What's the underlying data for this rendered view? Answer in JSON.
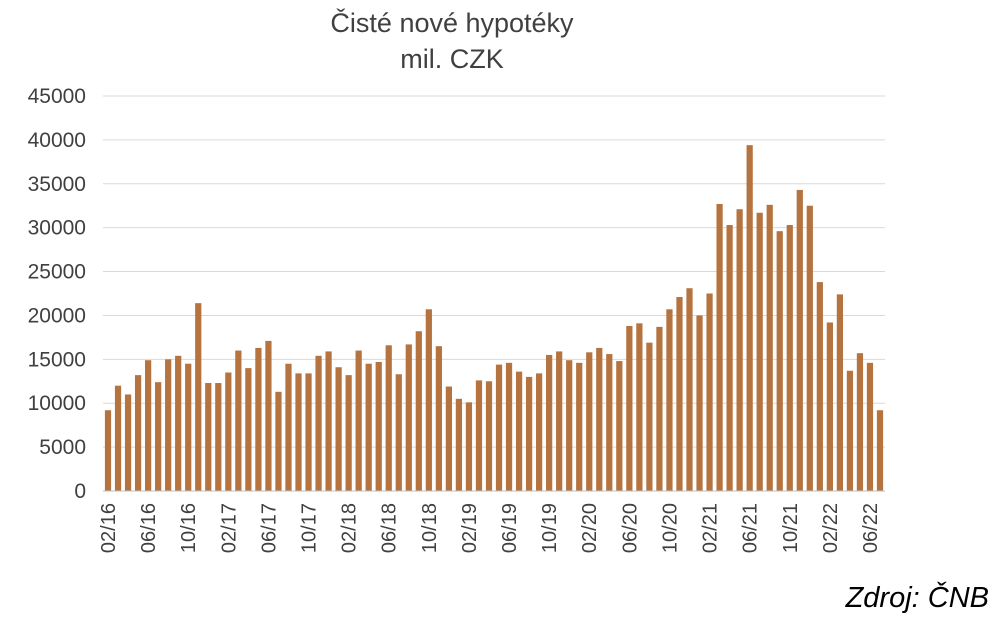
{
  "chart_data": {
    "type": "bar",
    "title": "Čisté nové hypotéky",
    "subtitle": "mil. CZK",
    "source": "Zdroj: ČNB",
    "ylim": [
      0,
      45000
    ],
    "yticks": [
      0,
      5000,
      10000,
      15000,
      20000,
      25000,
      30000,
      35000,
      40000,
      45000
    ],
    "grid": true,
    "bar_color": "#B5733F",
    "categories": [
      "02/16",
      "03/16",
      "04/16",
      "05/16",
      "06/16",
      "07/16",
      "08/16",
      "09/16",
      "10/16",
      "11/16",
      "12/16",
      "01/17",
      "02/17",
      "03/17",
      "04/17",
      "05/17",
      "06/17",
      "07/17",
      "08/17",
      "09/17",
      "10/17",
      "11/17",
      "12/17",
      "01/18",
      "02/18",
      "03/18",
      "04/18",
      "05/18",
      "06/18",
      "07/18",
      "08/18",
      "09/18",
      "10/18",
      "11/18",
      "12/18",
      "01/19",
      "02/19",
      "03/19",
      "04/19",
      "05/19",
      "06/19",
      "07/19",
      "08/19",
      "09/19",
      "10/19",
      "11/19",
      "12/19",
      "01/20",
      "02/20",
      "03/20",
      "04/20",
      "05/20",
      "06/20",
      "07/20",
      "08/20",
      "09/20",
      "10/20",
      "11/20",
      "12/20",
      "01/21",
      "02/21",
      "03/21",
      "04/21",
      "05/21",
      "06/21",
      "07/21",
      "08/21",
      "09/21",
      "10/21",
      "11/21",
      "12/21",
      "01/22",
      "02/22",
      "03/22",
      "04/22",
      "05/22",
      "06/22",
      "07/22"
    ],
    "tick_labels": [
      "02/16",
      "06/16",
      "10/16",
      "02/17",
      "06/17",
      "10/17",
      "02/18",
      "06/18",
      "10/18",
      "02/19",
      "06/19",
      "10/19",
      "02/20",
      "06/20",
      "10/20",
      "02/21",
      "06/21",
      "10/21",
      "02/22",
      "06/22"
    ],
    "values": [
      9200,
      12000,
      11000,
      13200,
      14900,
      12400,
      15000,
      15400,
      14500,
      21400,
      12300,
      12300,
      13500,
      16000,
      14000,
      16300,
      17100,
      11300,
      14500,
      13400,
      13400,
      15400,
      15900,
      14100,
      13200,
      16000,
      14500,
      14700,
      16600,
      13300,
      16700,
      18200,
      20700,
      16500,
      11900,
      10500,
      10100,
      12600,
      12500,
      14400,
      14600,
      13600,
      13000,
      13400,
      15500,
      15900,
      14900,
      14600,
      15800,
      16300,
      15600,
      14800,
      18800,
      19100,
      16900,
      18700,
      20700,
      22100,
      23100,
      20000,
      22500,
      32700,
      30300,
      32100,
      39400,
      31700,
      32600,
      29600,
      30300,
      34300,
      32500,
      23800,
      19200,
      22400,
      13700,
      15700,
      14600,
      9200
    ]
  }
}
